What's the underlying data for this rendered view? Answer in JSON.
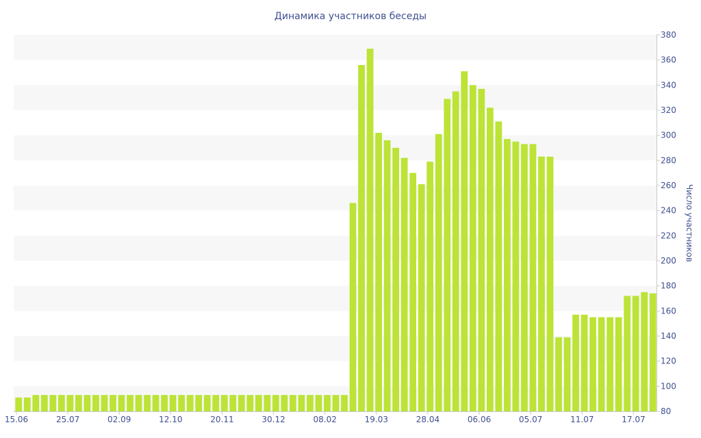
{
  "chart_data": {
    "type": "bar",
    "title": "Динамика участников беседы",
    "xlabel": "",
    "ylabel": "Число участников",
    "ylim": [
      80,
      380
    ],
    "yticks": [
      80,
      100,
      120,
      140,
      160,
      180,
      200,
      220,
      240,
      260,
      280,
      300,
      320,
      340,
      360,
      380
    ],
    "y_axis_side": "right",
    "grid": "alternating horizontal bands",
    "bar_color": "#bce336",
    "band_color": "#f7f7f7",
    "text_color": "#3f4f8f",
    "xtick_labels": [
      {
        "label": "15.06",
        "index": 0
      },
      {
        "label": "25.07",
        "index": 6
      },
      {
        "label": "02.09",
        "index": 12
      },
      {
        "label": "12.10",
        "index": 18
      },
      {
        "label": "20.11",
        "index": 24
      },
      {
        "label": "30.12",
        "index": 30
      },
      {
        "label": "08.02",
        "index": 36
      },
      {
        "label": "19.03",
        "index": 42
      },
      {
        "label": "28.04",
        "index": 48
      },
      {
        "label": "06.06",
        "index": 54
      },
      {
        "label": "05.07",
        "index": 60
      },
      {
        "label": "11.07",
        "index": 66
      },
      {
        "label": "17.07",
        "index": 72
      }
    ],
    "values": [
      91,
      91,
      93,
      93,
      93,
      93,
      93,
      93,
      93,
      93,
      93,
      93,
      93,
      93,
      93,
      93,
      93,
      93,
      93,
      93,
      93,
      93,
      93,
      93,
      93,
      93,
      93,
      93,
      93,
      93,
      93,
      93,
      93,
      93,
      93,
      93,
      93,
      93,
      93,
      246,
      356,
      369,
      302,
      296,
      290,
      282,
      270,
      261,
      279,
      301,
      329,
      335,
      351,
      340,
      337,
      322,
      311,
      297,
      295,
      293,
      293,
      283,
      283,
      139,
      139,
      157,
      157,
      155,
      155,
      155,
      155,
      172,
      172,
      175,
      174
    ]
  }
}
